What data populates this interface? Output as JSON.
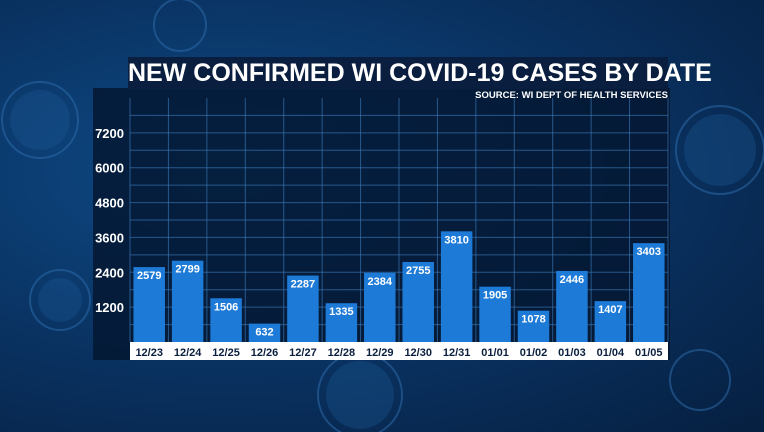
{
  "chart_data": {
    "type": "bar",
    "title": "NEW CONFIRMED WI COVID-19 CASES BY DATE",
    "subtitle": "SOURCE: WI DEPT OF HEALTH SERVICES",
    "xlabel": "",
    "ylabel": "",
    "categories": [
      "12/23",
      "12/24",
      "12/25",
      "12/26",
      "12/27",
      "12/28",
      "12/29",
      "12/30",
      "12/31",
      "01/01",
      "01/02",
      "01/03",
      "01/04",
      "01/05"
    ],
    "values": [
      2579,
      2799,
      1506,
      632,
      2287,
      1335,
      2384,
      2755,
      3810,
      1905,
      1078,
      2446,
      1407,
      3403
    ],
    "yticks": [
      1200,
      2400,
      3600,
      4800,
      6000,
      7200
    ],
    "ylim": [
      0,
      8400
    ],
    "grid": true,
    "legend": "none",
    "bar_color": "#1d7ad6",
    "label_color": "#ffffff"
  }
}
